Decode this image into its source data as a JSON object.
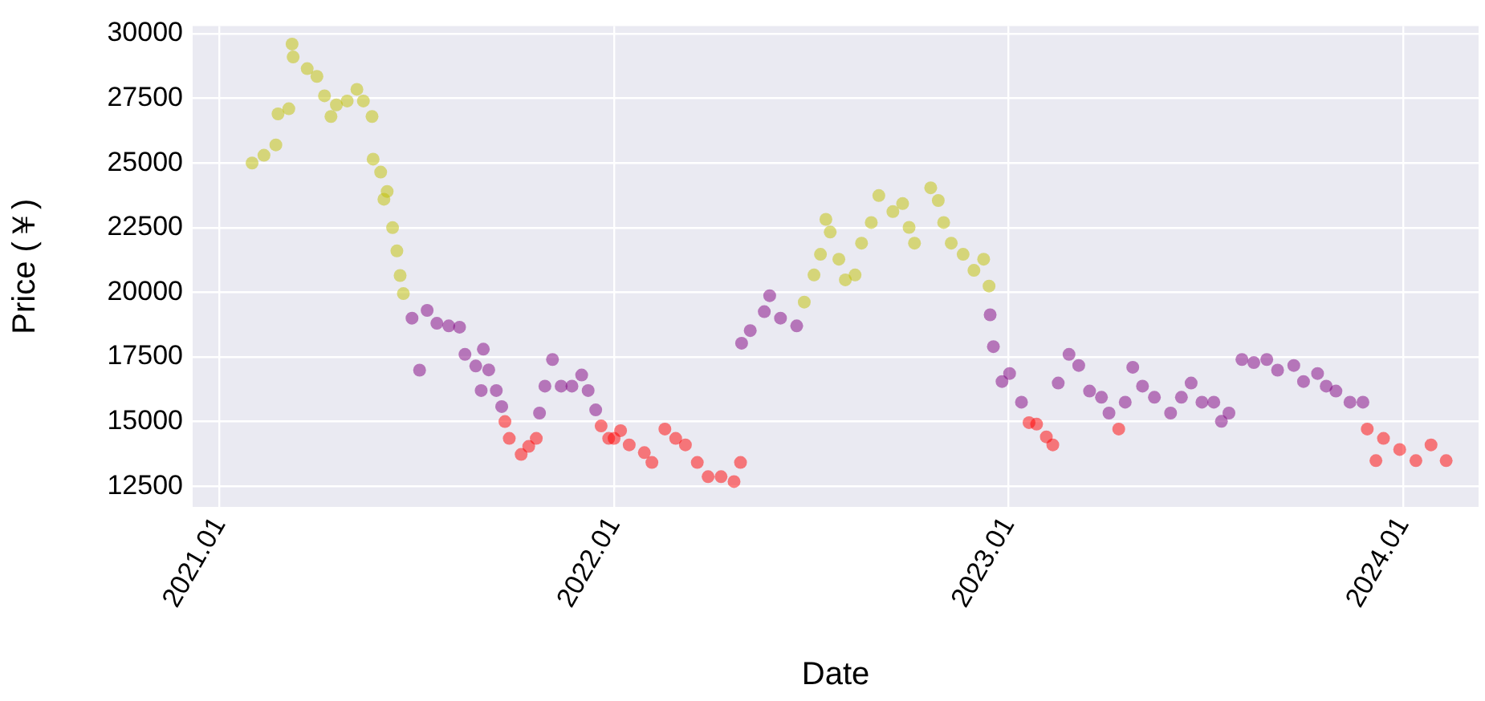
{
  "chart_data": {
    "type": "scatter",
    "xlabel": "Date",
    "ylabel": "Price (￥)",
    "xlim": [
      "2020-12-07",
      "2024-03-11"
    ],
    "ylim": [
      11700,
      30300
    ],
    "xticks": [
      {
        "value": "2021-01-01",
        "label": "2021.01"
      },
      {
        "value": "2022-01-01",
        "label": "2022.01"
      },
      {
        "value": "2023-01-01",
        "label": "2023.01"
      },
      {
        "value": "2024-01-01",
        "label": "2024.01"
      }
    ],
    "yticks": [
      12500,
      15000,
      17500,
      20000,
      22500,
      25000,
      27500,
      30000
    ],
    "grid": true,
    "marker": "circle",
    "series": [
      {
        "color": "#bfbf00",
        "x": [
          "2021-01-31",
          "2021-02-11",
          "2021-02-22",
          "2021-02-24",
          "2021-03-06",
          "2021-03-09",
          "2021-03-10",
          "2021-03-23",
          "2021-04-01",
          "2021-04-08",
          "2021-04-14",
          "2021-04-19",
          "2021-04-29",
          "2021-05-08",
          "2021-05-14",
          "2021-05-22",
          "2021-05-23",
          "2021-05-30",
          "2021-06-02",
          "2021-06-05",
          "2021-06-10",
          "2021-06-14",
          "2021-06-17",
          "2021-06-20",
          "2022-06-26",
          "2022-07-05",
          "2022-07-11",
          "2022-07-16",
          "2022-07-20",
          "2022-07-28",
          "2022-08-03",
          "2022-08-12",
          "2022-08-18",
          "2022-08-27",
          "2022-09-03",
          "2022-09-16",
          "2022-09-25",
          "2022-10-01",
          "2022-10-06",
          "2022-10-21",
          "2022-10-28",
          "2022-11-02",
          "2022-11-09",
          "2022-11-20",
          "2022-11-30",
          "2022-12-09",
          "2022-12-14"
        ],
        "values": [
          25000,
          25300,
          25700,
          26900,
          27100,
          29600,
          29100,
          28650,
          28350,
          27600,
          26800,
          27250,
          27400,
          27850,
          27400,
          26800,
          25150,
          24650,
          23600,
          23900,
          22500,
          21600,
          20650,
          19950,
          19620,
          20670,
          21470,
          22820,
          22330,
          21280,
          20480,
          20670,
          21900,
          22700,
          23740,
          23120,
          23430,
          22510,
          21900,
          24040,
          23550,
          22700,
          21900,
          21470,
          20850,
          21280,
          20240
        ]
      },
      {
        "color": "#800080",
        "x": [
          "2021-06-28",
          "2021-07-05",
          "2021-07-12",
          "2021-07-21",
          "2021-08-01",
          "2021-08-11",
          "2021-08-16",
          "2021-08-26",
          "2021-08-31",
          "2021-09-02",
          "2021-09-07",
          "2021-09-14",
          "2021-09-19",
          "2021-10-24",
          "2021-10-29",
          "2021-11-05",
          "2021-11-13",
          "2021-11-23",
          "2021-12-02",
          "2021-12-08",
          "2021-12-15",
          "2022-04-29",
          "2022-05-07",
          "2022-05-20",
          "2022-05-25",
          "2022-06-04",
          "2022-06-19",
          "2022-12-15",
          "2022-12-18",
          "2022-12-26",
          "2023-01-02",
          "2023-01-13",
          "2023-02-16",
          "2023-02-26",
          "2023-03-07",
          "2023-03-17",
          "2023-03-28",
          "2023-04-04",
          "2023-04-19",
          "2023-04-26",
          "2023-05-05",
          "2023-05-16",
          "2023-05-31",
          "2023-06-10",
          "2023-06-19",
          "2023-06-29",
          "2023-07-10",
          "2023-07-17",
          "2023-07-24",
          "2023-08-05",
          "2023-08-16",
          "2023-08-28",
          "2023-09-07",
          "2023-09-22",
          "2023-10-01",
          "2023-10-14",
          "2023-10-22",
          "2023-10-31",
          "2023-11-13",
          "2023-11-25"
        ],
        "values": [
          19000,
          16990,
          19300,
          18800,
          18700,
          18650,
          17600,
          17150,
          16200,
          17800,
          17000,
          16200,
          15580,
          15330,
          16370,
          17400,
          16370,
          16370,
          16800,
          16200,
          15450,
          18030,
          18520,
          19250,
          19870,
          19000,
          18700,
          19130,
          17900,
          16550,
          16860,
          15750,
          16490,
          17600,
          17170,
          16180,
          15940,
          15330,
          15750,
          17100,
          16370,
          15940,
          15330,
          15940,
          16490,
          15750,
          15750,
          15010,
          15330,
          17400,
          17280,
          17400,
          16990,
          17170,
          16550,
          16860,
          16370,
          16180,
          15750,
          15750
        ]
      },
      {
        "color": "#ff0000",
        "x": [
          "2021-09-22",
          "2021-09-26",
          "2021-10-07",
          "2021-10-14",
          "2021-10-21",
          "2021-12-20",
          "2021-12-27",
          "2022-01-01",
          "2022-01-07",
          "2022-01-15",
          "2022-01-29",
          "2022-02-05",
          "2022-02-17",
          "2022-02-27",
          "2022-03-08",
          "2022-03-19",
          "2022-03-29",
          "2022-04-10",
          "2022-04-22",
          "2022-04-28",
          "2023-01-20",
          "2023-01-27",
          "2023-02-05",
          "2023-02-11",
          "2023-04-13",
          "2023-11-29",
          "2023-12-07",
          "2023-12-14",
          "2023-12-29",
          "2024-01-13",
          "2024-01-27",
          "2024-02-10"
        ],
        "values": [
          15000,
          14350,
          13730,
          14040,
          14350,
          14830,
          14350,
          14350,
          14650,
          14100,
          13800,
          13420,
          14710,
          14350,
          14100,
          13420,
          12870,
          12870,
          12680,
          13420,
          14960,
          14900,
          14410,
          14100,
          14710,
          14710,
          13490,
          14350,
          13920,
          13490,
          14100,
          13490
        ]
      }
    ]
  }
}
